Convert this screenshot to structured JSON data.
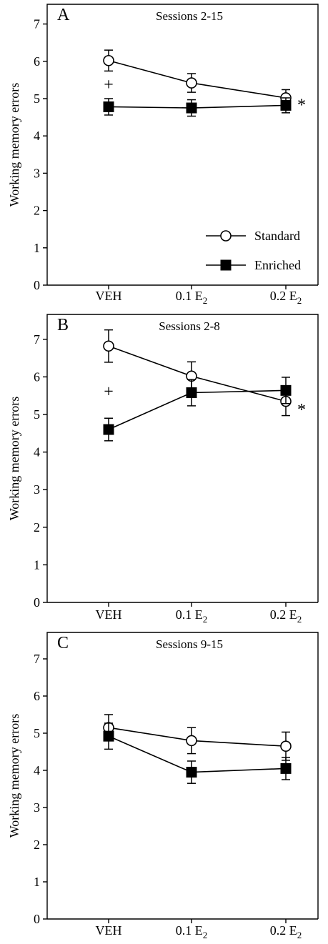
{
  "chart_data": [
    {
      "type": "line",
      "panel_letter": "A",
      "title": "Sessions 2-15",
      "ylabel": "Working memory errors",
      "xlabel": "",
      "categories": [
        {
          "main": "VEH",
          "sub": ""
        },
        {
          "main": "0.1 E",
          "sub": "2"
        },
        {
          "main": "0.2 E",
          "sub": "2"
        }
      ],
      "ylim": [
        0,
        7.3
      ],
      "yticks": [
        0,
        1,
        2,
        3,
        4,
        5,
        6,
        7
      ],
      "legend": {
        "position": "bottom-right"
      },
      "series": [
        {
          "name": "Standard",
          "marker": "open-circle",
          "values": [
            6.02,
            5.42,
            5.02
          ],
          "errors": [
            0.28,
            0.25,
            0.22
          ]
        },
        {
          "name": "Enriched",
          "marker": "filled-square",
          "values": [
            4.78,
            4.75,
            4.82
          ],
          "errors": [
            0.22,
            0.22,
            0.2
          ]
        }
      ],
      "annotations": [
        {
          "text": "+",
          "x_index": 0,
          "y": 5.38
        },
        {
          "text": "*",
          "x_index": 2,
          "y": 4.95
        }
      ]
    },
    {
      "type": "line",
      "panel_letter": "B",
      "title": "Sessions 2-8",
      "ylabel": "Working memory errors",
      "xlabel": "",
      "categories": [
        {
          "main": "VEH",
          "sub": ""
        },
        {
          "main": "0.1 E",
          "sub": "2"
        },
        {
          "main": "0.2 E",
          "sub": "2"
        }
      ],
      "ylim": [
        0,
        7.4
      ],
      "yticks": [
        0,
        1,
        2,
        3,
        4,
        5,
        6,
        7
      ],
      "series": [
        {
          "name": "Standard",
          "marker": "open-circle",
          "values": [
            6.82,
            6.02,
            5.35
          ],
          "errors": [
            0.43,
            0.38,
            0.38
          ]
        },
        {
          "name": "Enriched",
          "marker": "filled-square",
          "values": [
            4.6,
            5.58,
            5.64
          ],
          "errors": [
            0.3,
            0.35,
            0.35
          ]
        }
      ],
      "annotations": [
        {
          "text": "+",
          "x_index": 0,
          "y": 5.62
        },
        {
          "text": "*",
          "x_index": 2,
          "y": 5.25
        }
      ]
    },
    {
      "type": "line",
      "panel_letter": "C",
      "title": "Sessions 9-15",
      "ylabel": "Working memory errors",
      "xlabel": "",
      "categories": [
        {
          "main": "VEH",
          "sub": ""
        },
        {
          "main": "0.1 E",
          "sub": "2"
        },
        {
          "main": "0.2 E",
          "sub": "2"
        }
      ],
      "ylim": [
        0,
        7.4
      ],
      "yticks": [
        0,
        1,
        2,
        3,
        4,
        5,
        6,
        7
      ],
      "series": [
        {
          "name": "Standard",
          "marker": "open-circle",
          "values": [
            5.15,
            4.8,
            4.65
          ],
          "errors": [
            0.35,
            0.35,
            0.38
          ]
        },
        {
          "name": "Enriched",
          "marker": "filled-square",
          "values": [
            4.92,
            3.95,
            4.05
          ],
          "errors": [
            0.35,
            0.3,
            0.3
          ]
        }
      ],
      "annotations": []
    }
  ]
}
